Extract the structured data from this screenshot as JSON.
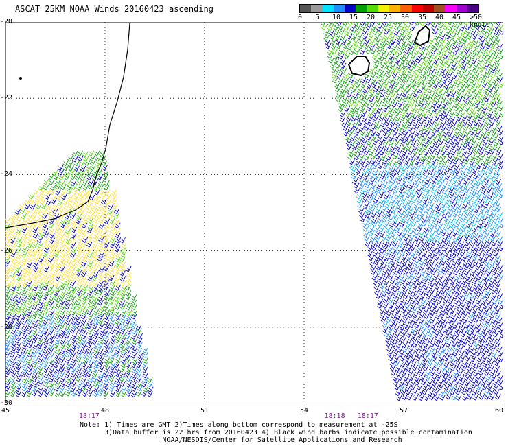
{
  "title": "ASCAT 25KM NOAA Winds 20160423 ascending",
  "legend": {
    "labels": [
      "0",
      "5",
      "10",
      "15",
      "20",
      "25",
      "30",
      "35",
      "40",
      "45",
      ">50 knots"
    ],
    "colors": [
      "#555555",
      "#9a9a9a",
      "#00e5ff",
      "#1e8fff",
      "#0000c8",
      "#00a000",
      "#55dd00",
      "#f5f000",
      "#ffb000",
      "#ff5f00",
      "#ff0000",
      "#c00000",
      "#a05020",
      "#ff00ff",
      "#a000d0",
      "#4b0082"
    ]
  },
  "map": {
    "lat_labels": [
      "-20",
      "-22",
      "-24",
      "-26",
      "-28",
      "-30"
    ],
    "lat_values": [
      -20,
      -22,
      -24,
      -26,
      -28,
      -30
    ],
    "lon_labels": [
      "45",
      "48",
      "51",
      "54",
      "57",
      "60"
    ],
    "lon_values": [
      45,
      48,
      51,
      54,
      57,
      60
    ],
    "extent": {
      "lon_min": 45,
      "lon_max": 60,
      "lat_min": -30,
      "lat_max": -20
    },
    "times": [
      {
        "text": "18:17",
        "lon": 47.5
      },
      {
        "text": "18:18",
        "lon": 54.9
      },
      {
        "text": "18:17",
        "lon": 55.9
      }
    ]
  },
  "notes": {
    "line1": "Note: 1) Times are GMT 2)Times along bottom correspond to measurement at -25S",
    "line2": "      3)Data buffer is 22 hrs from 20160423 4) Black wind barbs indicate possible contamination",
    "line3": "                    NOAA/NESDIS/Center for Satellite Applications and Research"
  }
}
